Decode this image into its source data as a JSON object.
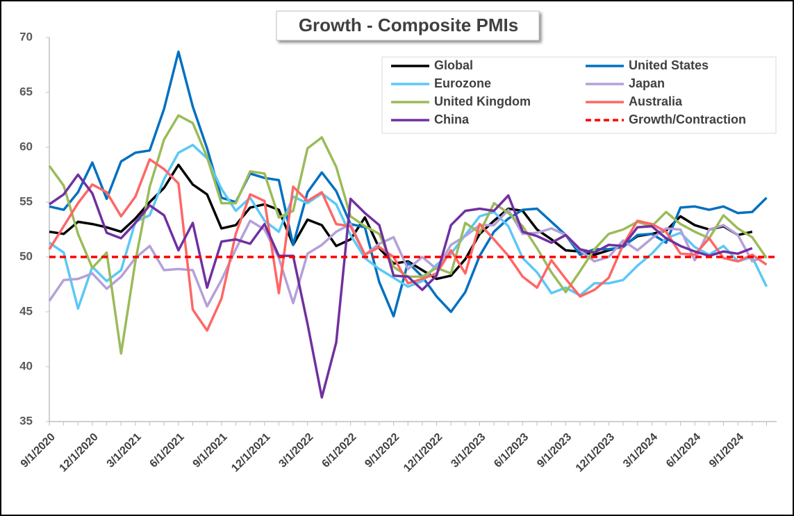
{
  "chart_data": {
    "type": "line",
    "title": "Growth - Composite PMIs",
    "categories": [
      "9/1/2020",
      null,
      null,
      "12/1/2020",
      null,
      null,
      "3/1/2021",
      null,
      null,
      "6/1/2021",
      null,
      null,
      "9/1/2021",
      null,
      null,
      "12/1/2021",
      null,
      null,
      "3/1/2022",
      null,
      null,
      "6/1/2022",
      null,
      null,
      "9/1/2022",
      null,
      null,
      "12/1/2022",
      null,
      null,
      "3/1/2023",
      null,
      null,
      "6/1/2023",
      null,
      null,
      "9/1/2023",
      null,
      null,
      "12/1/2023",
      null,
      null,
      "3/1/2024",
      null,
      null,
      "6/1/2024",
      null,
      null,
      "9/1/2024",
      null,
      null
    ],
    "series": [
      {
        "name": "Global",
        "color": "#000000",
        "values": [
          52.3,
          52.1,
          53.2,
          53.0,
          52.7,
          52.3,
          53.5,
          55.0,
          56.3,
          58.4,
          56.6,
          55.7,
          52.6,
          52.9,
          54.5,
          54.8,
          54.3,
          51.1,
          53.4,
          52.9,
          51.0,
          51.6,
          53.6,
          50.8,
          49.4,
          49.6,
          48.8,
          48.0,
          48.3,
          49.8,
          52.1,
          53.3,
          54.4,
          54.2,
          52.5,
          51.6,
          50.6,
          50.5,
          50.2,
          50.6,
          51.0,
          51.9,
          52.1,
          52.4,
          53.7,
          52.9,
          52.5,
          52.8,
          52.0,
          52.3,
          null
        ]
      },
      {
        "name": "United States",
        "color": "#0070c0",
        "values": [
          54.6,
          54.3,
          55.9,
          58.6,
          55.3,
          58.7,
          59.5,
          59.7,
          63.5,
          68.7,
          63.7,
          59.9,
          55.4,
          55.0,
          57.6,
          57.2,
          57.0,
          51.1,
          55.9,
          57.7,
          56.0,
          53.0,
          52.7,
          47.7,
          44.6,
          49.5,
          48.2,
          46.4,
          45.0,
          46.8,
          50.1,
          52.3,
          53.5,
          54.3,
          54.4,
          53.2,
          52.0,
          50.2,
          50.7,
          50.7,
          50.9,
          52.0,
          52.1,
          51.3,
          54.5,
          54.6,
          54.3,
          54.6,
          54.0,
          54.1,
          55.4
        ]
      },
      {
        "name": "Eurozone",
        "color": "#5bc8f5",
        "values": [
          51.3,
          50.4,
          45.3,
          49.1,
          47.8,
          48.8,
          53.2,
          53.8,
          57.1,
          59.5,
          60.2,
          59.0,
          56.2,
          54.2,
          55.4,
          53.3,
          52.3,
          55.5,
          54.9,
          55.8,
          54.8,
          52.0,
          49.9,
          48.9,
          48.1,
          47.3,
          47.8,
          49.3,
          50.3,
          52.0,
          53.7,
          54.1,
          52.8,
          49.9,
          48.6,
          46.7,
          47.2,
          46.5,
          47.6,
          47.6,
          47.9,
          49.2,
          50.3,
          51.7,
          52.2,
          50.9,
          50.2,
          51.0,
          49.6,
          50.0,
          47.3
        ]
      },
      {
        "name": "Japan",
        "color": "#b4a0d8",
        "values": [
          46.0,
          47.9,
          48.0,
          48.5,
          47.1,
          48.2,
          49.9,
          51.0,
          48.8,
          48.9,
          48.8,
          45.5,
          47.9,
          50.7,
          53.3,
          52.5,
          49.9,
          45.8,
          50.3,
          51.1,
          52.3,
          53.0,
          50.2,
          51.2,
          51.8,
          48.9,
          50.0,
          48.9,
          51.1,
          51.9,
          52.9,
          52.9,
          54.3,
          52.1,
          52.2,
          52.6,
          52.0,
          50.6,
          49.6,
          50.0,
          51.5,
          50.6,
          51.7,
          52.6,
          52.5,
          49.7,
          52.5,
          52.9,
          52.0,
          49.6,
          50.1
        ]
      },
      {
        "name": "United Kingdom",
        "color": "#9bbb59",
        "values": [
          58.3,
          56.5,
          52.1,
          49.0,
          50.4,
          41.2,
          49.6,
          56.4,
          60.7,
          62.9,
          62.2,
          59.1,
          54.9,
          54.9,
          57.8,
          57.6,
          53.6,
          54.2,
          59.9,
          60.9,
          58.2,
          53.7,
          52.8,
          52.1,
          49.1,
          48.2,
          48.2,
          49.0,
          48.5,
          53.1,
          52.2,
          54.9,
          54.0,
          52.8,
          50.8,
          48.6,
          46.8,
          48.7,
          50.7,
          52.1,
          52.5,
          53.2,
          52.8,
          54.1,
          53.0,
          52.3,
          51.7,
          53.8,
          52.6,
          51.8,
          49.9
        ]
      },
      {
        "name": "Australia",
        "color": "#ff6666",
        "values": [
          50.7,
          52.8,
          54.9,
          56.6,
          55.9,
          53.7,
          55.5,
          58.9,
          58.0,
          56.7,
          45.2,
          43.3,
          46.2,
          52.1,
          55.7,
          55.1,
          46.7,
          56.4,
          55.1,
          55.9,
          53.0,
          52.8,
          50.2,
          50.9,
          50.0,
          47.6,
          48.0,
          48.5,
          50.6,
          48.5,
          53.0,
          51.6,
          50.1,
          48.2,
          47.2,
          49.7,
          48.0,
          46.4,
          47.0,
          48.1,
          51.1,
          53.3,
          53.0,
          52.3,
          50.3,
          50.2,
          51.7,
          49.9,
          49.6,
          50.2,
          49.3
        ]
      },
      {
        "name": "China",
        "color": "#7030a0",
        "values": [
          54.8,
          55.7,
          57.5,
          55.8,
          52.2,
          51.7,
          53.1,
          54.7,
          53.8,
          50.6,
          53.1,
          47.2,
          51.4,
          51.6,
          51.2,
          53.0,
          50.1,
          50.1,
          43.9,
          37.2,
          42.2,
          55.3,
          54.0,
          52.9,
          48.3,
          48.2,
          47.0,
          48.3,
          52.9,
          54.2,
          54.4,
          54.2,
          55.6,
          52.3,
          51.9,
          51.3,
          52.0,
          50.7,
          50.4,
          51.1,
          51.0,
          52.7,
          52.8,
          51.7,
          51.0,
          50.5,
          50.1,
          50.5,
          50.3,
          50.8,
          null
        ]
      }
    ],
    "reference_line": {
      "name": "Growth/Contraction",
      "value": 50,
      "color": "#ff0000"
    },
    "ylim": [
      35,
      70
    ],
    "yticks": [
      35,
      40,
      45,
      50,
      55,
      60,
      65,
      70
    ],
    "grid": false,
    "legend": "top-right"
  }
}
